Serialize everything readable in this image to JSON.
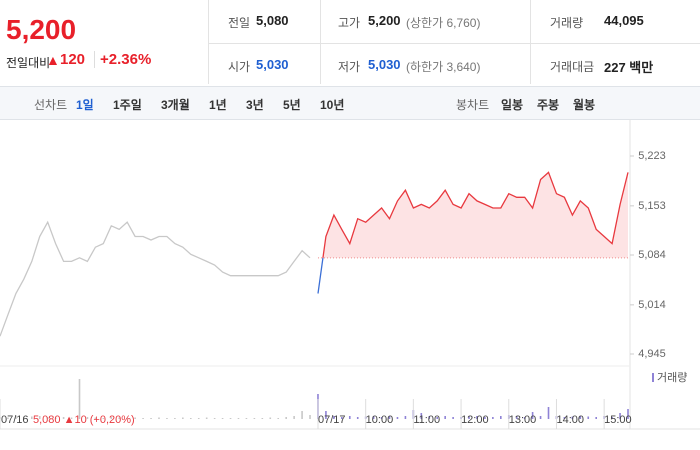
{
  "header": {
    "price": "5,200",
    "change_label": "전일대비",
    "change_arrow": "▲",
    "change": "120",
    "change_pct": "+2.36%",
    "stats": [
      [
        {
          "label": "전일",
          "value": "5,080"
        },
        {
          "label": "고가",
          "value": "5,200",
          "note": "(상한가 6,760)"
        },
        {
          "label": "거래량",
          "value": "44,095"
        }
      ],
      [
        {
          "label": "시가",
          "value": "5,030"
        },
        {
          "label": "저가",
          "value": "5,030",
          "note": "(하한가 3,640)"
        },
        {
          "label": "거래대금",
          "value": "227 백만"
        }
      ]
    ]
  },
  "tabs": {
    "line_label": "선차트",
    "line": [
      "1일",
      "1주일",
      "3개월",
      "1년",
      "3년",
      "5년",
      "10년"
    ],
    "candle_label": "봉차트",
    "candle": [
      "일봉",
      "주봉",
      "월봉"
    ]
  },
  "chart_data": {
    "type": "line",
    "categories": [
      "07/16",
      null,
      null,
      null,
      null,
      null,
      null,
      null,
      null,
      null,
      null,
      null,
      null,
      null,
      null,
      null,
      null,
      null,
      null,
      null,
      null,
      null,
      null,
      null,
      null,
      null,
      null,
      null,
      null,
      null,
      null,
      null,
      null,
      null,
      null,
      null,
      null,
      null,
      null,
      null,
      "07/17",
      null,
      null,
      null,
      null,
      null,
      "10:00",
      null,
      null,
      null,
      null,
      null,
      "11:00",
      null,
      null,
      null,
      null,
      null,
      "12:00",
      null,
      null,
      null,
      null,
      null,
      "13:00",
      null,
      null,
      null,
      null,
      null,
      "14:00",
      null,
      null,
      null,
      null,
      null,
      "15:00",
      null,
      null,
      null
    ],
    "series": [
      {
        "color": "#c8c8c8",
        "values": [
          4970,
          5000,
          5030,
          5050,
          5075,
          5110,
          5130,
          5100,
          5075,
          5075,
          5080,
          5075,
          5095,
          5100,
          5125,
          5120,
          5130,
          5110,
          5110,
          5105,
          5110,
          5110,
          5100,
          5095,
          5085,
          5080,
          5075,
          5070,
          5060,
          5055,
          5055,
          5055,
          5055,
          5055,
          5055,
          5055,
          5060,
          5075,
          5090,
          5080,
          null,
          null,
          null,
          null,
          null,
          null,
          null,
          null,
          null,
          null,
          null,
          null,
          null,
          null,
          null,
          null,
          null,
          null,
          null,
          null,
          null,
          null,
          null,
          null,
          null,
          null,
          null,
          null,
          null,
          null,
          null,
          null,
          null,
          null,
          null,
          null,
          null,
          null,
          null,
          null
        ]
      },
      {
        "color": "#e8393f",
        "down_color": "#3b6fd6",
        "values": [
          null,
          null,
          null,
          null,
          null,
          null,
          null,
          null,
          null,
          null,
          null,
          null,
          null,
          null,
          null,
          null,
          null,
          null,
          null,
          null,
          null,
          null,
          null,
          null,
          null,
          null,
          null,
          null,
          null,
          null,
          null,
          null,
          null,
          null,
          null,
          null,
          null,
          null,
          null,
          null,
          5030,
          5110,
          5140,
          5120,
          5100,
          5135,
          5130,
          5140,
          5150,
          5135,
          5160,
          5175,
          5150,
          5155,
          5150,
          5160,
          5175,
          5155,
          5150,
          5170,
          5160,
          5155,
          5150,
          5150,
          5170,
          5165,
          5165,
          5150,
          5190,
          5200,
          5170,
          5165,
          5140,
          5160,
          5150,
          5120,
          5110,
          5100,
          5155,
          5200
        ]
      }
    ],
    "baseline": 5080,
    "ylim": [
      4945,
      5223
    ],
    "yticks": [
      {
        "value": 4945,
        "label": "4,945"
      },
      {
        "value": 5014,
        "label": "5,014"
      },
      {
        "value": 5084,
        "label": "5,084"
      },
      {
        "value": 5153,
        "label": "5,153"
      },
      {
        "value": 5223,
        "label": "5,223"
      }
    ],
    "grid": false,
    "volume": {
      "name": "거래량",
      "colors": [
        "#c8c8c8",
        "#8f83d6"
      ],
      "ylim": [
        0,
        4500
      ],
      "values": [
        200,
        150,
        300,
        200,
        250,
        300,
        200,
        150,
        200,
        150,
        4000,
        200,
        150,
        100,
        200,
        150,
        100,
        150,
        100,
        100,
        150,
        100,
        100,
        150,
        100,
        100,
        150,
        100,
        100,
        100,
        100,
        100,
        100,
        100,
        150,
        100,
        200,
        300,
        800,
        400,
        2500,
        800,
        300,
        200,
        300,
        200,
        250,
        300,
        200,
        300,
        200,
        300,
        900,
        600,
        300,
        200,
        300,
        200,
        200,
        250,
        300,
        200,
        200,
        300,
        400,
        300,
        200,
        700,
        300,
        1200,
        300,
        200,
        250,
        300,
        250,
        200,
        300,
        200,
        600,
        1000
      ]
    },
    "prev_summary": "5,080 ▲10 (+0,20%)"
  }
}
